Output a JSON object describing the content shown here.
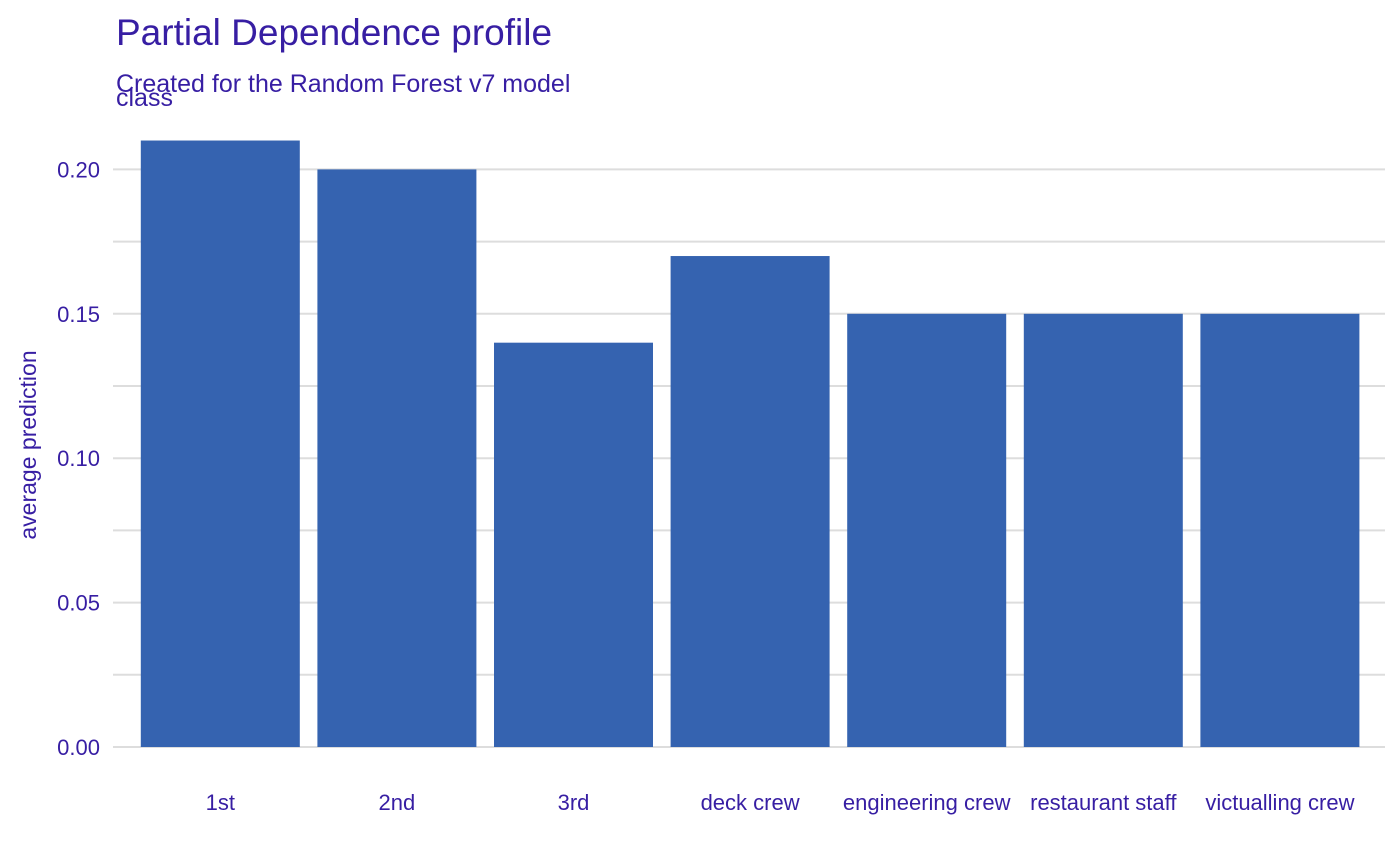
{
  "chart_data": {
    "type": "bar",
    "title": "Partial Dependence profile",
    "subtitle": "Created for the Random Forest v7 model",
    "facet_label": "class",
    "xlabel": "",
    "ylabel": "average prediction",
    "categories": [
      "1st",
      "2nd",
      "3rd",
      "deck crew",
      "engineering crew",
      "restaurant staff",
      "victualling crew"
    ],
    "values": [
      0.21,
      0.2,
      0.14,
      0.17,
      0.15,
      0.15,
      0.15
    ],
    "ylim": [
      0,
      0.21
    ],
    "yticks": [
      0.0,
      0.05,
      0.1,
      0.15,
      0.2
    ],
    "ytick_labels": [
      "0.00",
      "0.05",
      "0.10",
      "0.15",
      "0.20"
    ],
    "grid": true,
    "colors": {
      "bar": "#3563B0",
      "text": "#371EA3",
      "grid": "#DDDDDD"
    }
  }
}
